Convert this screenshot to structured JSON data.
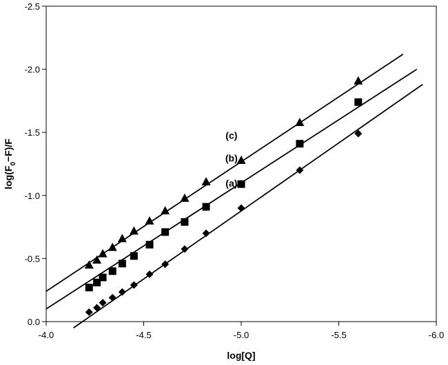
{
  "chart_data": {
    "type": "scatter",
    "title": "",
    "xlabel": "log[Q]",
    "ylabel_parts": [
      "log(F",
      "0",
      "−F)/F"
    ],
    "xlim": [
      -4.0,
      -6.0
    ],
    "ylim": [
      0.0,
      -2.5
    ],
    "xticks": [
      -4.0,
      -4.5,
      -5.0,
      -5.5,
      -6.0
    ],
    "xtick_labels": [
      "-4.0",
      "-4.5",
      "-5.0",
      "-5.5",
      "-6.0"
    ],
    "yticks": [
      0.0,
      -0.5,
      -1.0,
      -1.5,
      -2.0,
      -2.5
    ],
    "ytick_labels": [
      "0.0",
      "-0.5",
      "-1.0",
      "-1.5",
      "-2.0",
      "-2.5"
    ],
    "grid": false,
    "series": [
      {
        "label": "(a)",
        "marker": "diamond",
        "label_at": [
          -4.95,
          -1.07
        ],
        "x": [
          -4.22,
          -4.26,
          -4.29,
          -4.34,
          -4.39,
          -4.45,
          -4.53,
          -4.61,
          -4.71,
          -4.82,
          -5.0,
          -5.3,
          -5.6
        ],
        "y": [
          -0.075,
          -0.11,
          -0.15,
          -0.19,
          -0.235,
          -0.29,
          -0.375,
          -0.455,
          -0.575,
          -0.7,
          -0.9,
          -1.2,
          -1.49
        ],
        "fit": {
          "x": [
            -4.14,
            -5.93
          ],
          "y": [
            0.05,
            -1.88
          ]
        }
      },
      {
        "label": "(b)",
        "marker": "square",
        "label_at": [
          -4.95,
          -1.27
        ],
        "x": [
          -4.22,
          -4.26,
          -4.29,
          -4.34,
          -4.39,
          -4.45,
          -4.53,
          -4.61,
          -4.71,
          -4.82,
          -5.0,
          -5.3,
          -5.6
        ],
        "y": [
          -0.27,
          -0.31,
          -0.35,
          -0.4,
          -0.46,
          -0.52,
          -0.61,
          -0.71,
          -0.79,
          -0.91,
          -1.09,
          -1.41,
          -1.74
        ],
        "fit": {
          "x": [
            -4.0,
            -5.9
          ],
          "y": [
            -0.1,
            -2.0
          ]
        }
      },
      {
        "label": "(c)",
        "marker": "triangle",
        "label_at": [
          -4.95,
          -1.45
        ],
        "x": [
          -4.22,
          -4.26,
          -4.29,
          -4.34,
          -4.39,
          -4.45,
          -4.53,
          -4.61,
          -4.71,
          -4.82,
          -5.0,
          -5.3,
          -5.6
        ],
        "y": [
          -0.45,
          -0.49,
          -0.54,
          -0.59,
          -0.66,
          -0.72,
          -0.8,
          -0.88,
          -0.98,
          -1.11,
          -1.28,
          -1.58,
          -1.91
        ],
        "fit": {
          "x": [
            -4.0,
            -5.83
          ],
          "y": [
            -0.24,
            -2.12
          ]
        }
      }
    ]
  }
}
